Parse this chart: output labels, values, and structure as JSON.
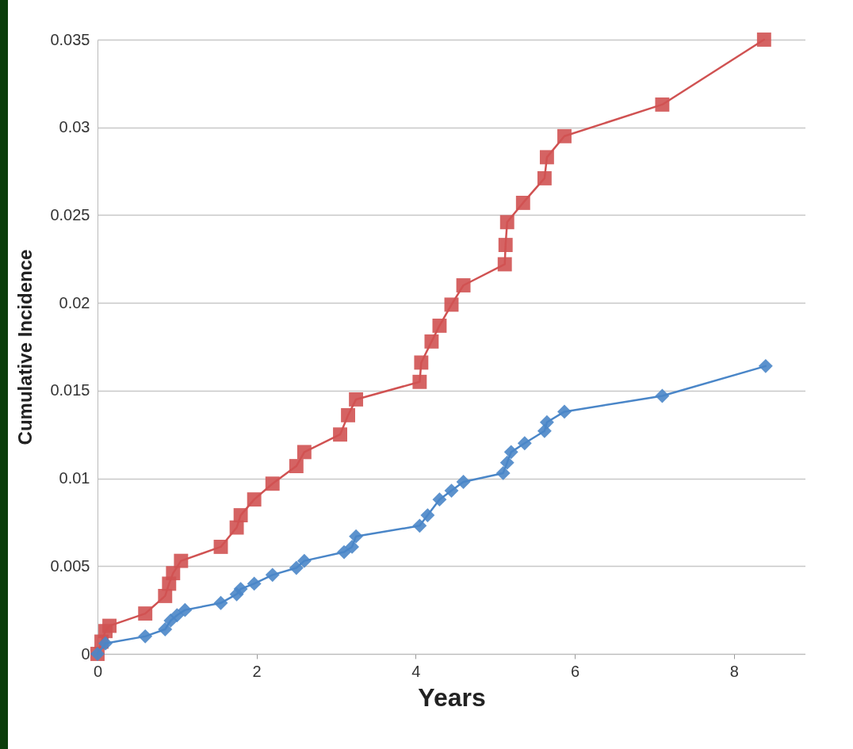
{
  "chart_data": {
    "type": "line",
    "xlabel": "Years",
    "ylabel": "Cumulative Incidence",
    "xlim": [
      0,
      8.9
    ],
    "ylim": [
      0,
      0.035
    ],
    "xticks": [
      0,
      2,
      4,
      6,
      8
    ],
    "yticks": [
      0,
      0.005,
      0.01,
      0.015,
      0.02,
      0.025,
      0.03,
      0.035
    ],
    "grid": "y",
    "line_style": "solid",
    "series": [
      {
        "color": "#d05252",
        "marker": "square",
        "x": [
          0,
          0.05,
          0.1,
          0.15,
          0.6,
          0.85,
          0.9,
          0.95,
          1.05,
          1.55,
          1.75,
          1.8,
          1.97,
          2.2,
          2.5,
          2.6,
          3.05,
          3.15,
          3.25,
          4.05,
          4.07,
          4.2,
          4.3,
          4.45,
          4.6,
          5.12,
          5.13,
          5.15,
          5.35,
          5.62,
          5.65,
          5.87,
          7.1,
          8.38
        ],
        "values": [
          0,
          0.0007,
          0.0013,
          0.0016,
          0.0023,
          0.0033,
          0.004,
          0.0046,
          0.0053,
          0.0061,
          0.0072,
          0.0079,
          0.0088,
          0.0097,
          0.0107,
          0.0115,
          0.0125,
          0.0136,
          0.0145,
          0.0155,
          0.0166,
          0.0178,
          0.0187,
          0.0199,
          0.021,
          0.0222,
          0.0233,
          0.0246,
          0.0257,
          0.0271,
          0.0283,
          0.0295,
          0.0313,
          0.035
        ]
      },
      {
        "color": "#4a86c8",
        "marker": "diamond",
        "x": [
          0,
          0.1,
          0.6,
          0.85,
          0.92,
          1.0,
          1.1,
          1.55,
          1.75,
          1.8,
          1.97,
          2.2,
          2.5,
          2.6,
          3.1,
          3.2,
          3.25,
          4.05,
          4.15,
          4.3,
          4.45,
          4.6,
          5.1,
          5.15,
          5.2,
          5.37,
          5.62,
          5.65,
          5.87,
          7.1,
          8.4
        ],
        "values": [
          0,
          0.0006,
          0.001,
          0.0014,
          0.0019,
          0.0022,
          0.0025,
          0.0029,
          0.0034,
          0.0037,
          0.004,
          0.0045,
          0.0049,
          0.0053,
          0.0058,
          0.0061,
          0.0067,
          0.0073,
          0.0079,
          0.0088,
          0.0093,
          0.0098,
          0.0103,
          0.0109,
          0.0115,
          0.012,
          0.0127,
          0.0132,
          0.0138,
          0.0147,
          0.0164
        ]
      }
    ]
  }
}
